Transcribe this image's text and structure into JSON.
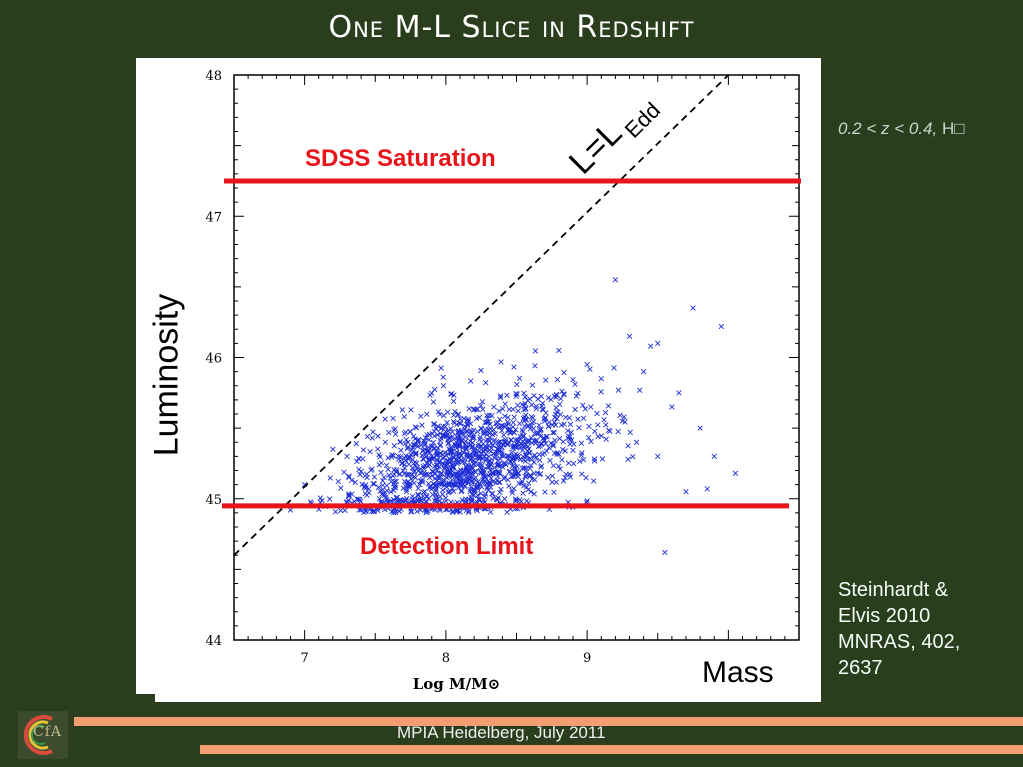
{
  "slide": {
    "title": "One M-L Slice in Redshift",
    "luminosity_label": "Luminosity",
    "mass_label": "Mass",
    "range_note_italic": "0.2 < z < 0.4,",
    "range_note_rest": " H□",
    "citation": "Steinhardt &\nElvis 2010\nMNRAS, 402,\n2637",
    "footer": "MPIA Heidelberg, July 2011",
    "logo_text": "CfA"
  },
  "colors": {
    "background": "#2a3d1c",
    "accent_bar": "#f39d72",
    "limit_line": "#e8141a",
    "points": "#1f2fd6"
  },
  "chart_data": {
    "type": "scatter",
    "xlabel": "Log M/M⊙",
    "ylabel": "",
    "xlim": [
      6.5,
      10.5
    ],
    "ylim": [
      44,
      48
    ],
    "x_ticks": [
      "7",
      "8",
      "9"
    ],
    "x_tick_values": [
      7,
      8,
      9
    ],
    "y_ticks": [
      "44",
      "45",
      "46",
      "47",
      "48"
    ],
    "y_tick_values": [
      44,
      45,
      46,
      47,
      48
    ],
    "grid": false,
    "annotations": {
      "saturation_label": "SDSS Saturation",
      "saturation_y": 47.25,
      "detection_label": "Detection Limit",
      "detection_y": 44.95,
      "eddington_label_main": "L=L",
      "eddington_label_sub": "Edd",
      "eddington_line": {
        "x": [
          6.5,
          10.0
        ],
        "y": [
          44.6,
          48.0
        ]
      }
    },
    "series": [
      {
        "marker": "x",
        "cluster": {
          "center_x": 8.15,
          "center_y": 45.25,
          "spread_x": 0.42,
          "spread_y": 0.22,
          "count": 1400
        },
        "x": [
          9.2,
          9.75,
          9.95,
          9.3,
          9.45,
          9.5,
          9.6,
          9.65,
          9.8,
          9.9,
          10.05,
          9.55,
          9.7,
          9.35,
          9.4,
          6.9,
          7.0,
          7.2,
          7.3,
          9.5,
          9.85,
          9.0,
          9.1,
          9.25,
          8.8
        ],
        "y": [
          46.55,
          46.35,
          46.22,
          46.15,
          46.08,
          46.1,
          45.65,
          45.75,
          45.5,
          45.3,
          45.18,
          44.62,
          45.05,
          45.4,
          45.9,
          44.92,
          45.1,
          45.35,
          45.3,
          45.3,
          45.07,
          45.95,
          45.85,
          45.55,
          46.05
        ]
      }
    ]
  }
}
